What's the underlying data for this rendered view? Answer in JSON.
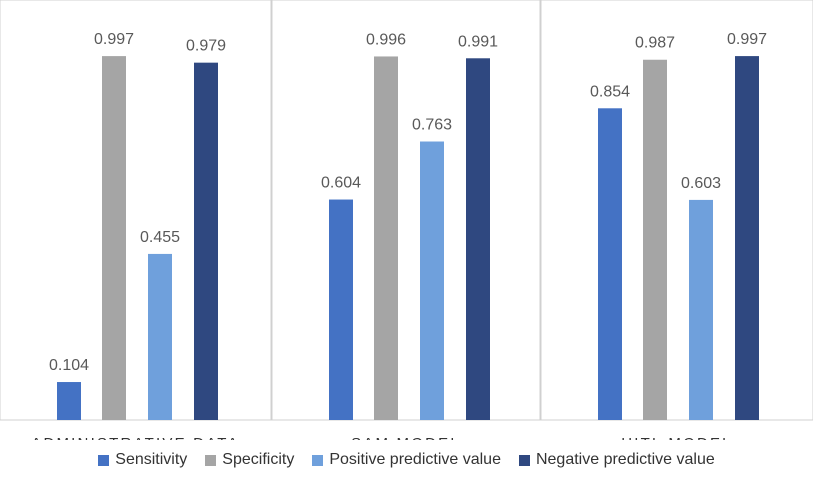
{
  "chart_data": {
    "type": "bar",
    "title": "",
    "xlabel": "",
    "ylabel": "",
    "ylim": [
      0,
      1.05
    ],
    "grid": false,
    "legend_position": "bottom",
    "categories": [
      "ADMINISTRATIVE DATA",
      "SAM MODEL",
      "HITL MODEL"
    ],
    "series": [
      {
        "name": "Sensitivity",
        "color": "#4472c4",
        "values": [
          0.104,
          0.604,
          0.854
        ],
        "labels": [
          "0.104",
          "0.604",
          "0.854"
        ]
      },
      {
        "name": "Specificity",
        "color": "#a5a5a5",
        "values": [
          0.997,
          0.996,
          0.987
        ],
        "labels": [
          "0.997",
          "0.996",
          "0.987"
        ]
      },
      {
        "name": "Positive predictive value",
        "color": "#6fa0dc",
        "values": [
          0.455,
          0.763,
          0.603
        ],
        "labels": [
          "0.455",
          "0.763",
          "0.603"
        ]
      },
      {
        "name": "Negative predictive value",
        "color": "#2f4880",
        "values": [
          0.979,
          0.991,
          0.997
        ],
        "labels": [
          "0.979",
          "0.991",
          "0.997"
        ]
      }
    ]
  }
}
